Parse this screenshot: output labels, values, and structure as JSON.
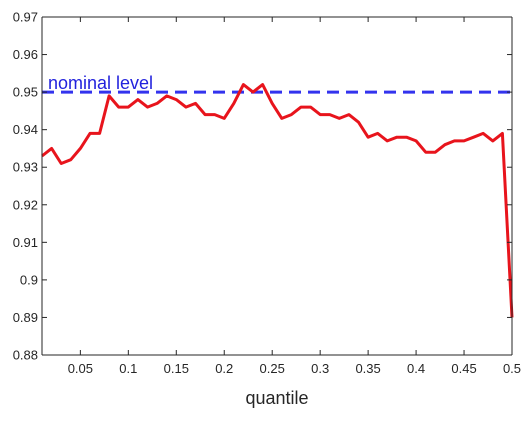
{
  "chart_data": {
    "type": "line",
    "title": "",
    "xlabel": "quantile",
    "ylabel": "",
    "xlim": [
      0.01,
      0.5
    ],
    "ylim": [
      0.88,
      0.97
    ],
    "x_ticks": [
      0.05,
      0.1,
      0.15,
      0.2,
      0.25,
      0.3,
      0.35,
      0.4,
      0.45,
      0.5
    ],
    "x_tick_labels": [
      "0.05",
      "0.1",
      "0.15",
      "0.2",
      "0.25",
      "0.3",
      "0.35",
      "0.4",
      "0.45",
      "0.5"
    ],
    "y_ticks": [
      0.88,
      0.89,
      0.9,
      0.91,
      0.92,
      0.93,
      0.94,
      0.95,
      0.96,
      0.97
    ],
    "y_tick_labels": [
      "0.88",
      "0.89",
      "0.9",
      "0.91",
      "0.92",
      "0.93",
      "0.94",
      "0.95",
      "0.96",
      "0.97"
    ],
    "grid": false,
    "series": [
      {
        "color": "#e8141c",
        "style": "solid",
        "x": [
          0.01,
          0.02,
          0.03,
          0.04,
          0.05,
          0.06,
          0.07,
          0.08,
          0.09,
          0.1,
          0.11,
          0.12,
          0.13,
          0.14,
          0.15,
          0.16,
          0.17,
          0.18,
          0.19,
          0.2,
          0.21,
          0.22,
          0.23,
          0.24,
          0.25,
          0.26,
          0.27,
          0.28,
          0.29,
          0.3,
          0.31,
          0.32,
          0.33,
          0.34,
          0.35,
          0.36,
          0.37,
          0.38,
          0.39,
          0.4,
          0.41,
          0.42,
          0.43,
          0.44,
          0.45,
          0.46,
          0.47,
          0.48,
          0.49,
          0.5
        ],
        "values": [
          0.933,
          0.935,
          0.931,
          0.932,
          0.935,
          0.939,
          0.939,
          0.949,
          0.946,
          0.946,
          0.948,
          0.946,
          0.947,
          0.949,
          0.948,
          0.946,
          0.947,
          0.944,
          0.944,
          0.943,
          0.947,
          0.952,
          0.95,
          0.952,
          0.947,
          0.943,
          0.944,
          0.946,
          0.946,
          0.944,
          0.944,
          0.943,
          0.944,
          0.942,
          0.938,
          0.939,
          0.937,
          0.938,
          0.938,
          0.937,
          0.934,
          0.934,
          0.936,
          0.937,
          0.937,
          0.938,
          0.939,
          0.937,
          0.939,
          0.89
        ]
      }
    ],
    "reference_line": {
      "y": 0.95,
      "color": "#3333ee",
      "style": "dashed"
    },
    "annotation": {
      "text": "nominal level",
      "color": "#2222dd"
    }
  }
}
